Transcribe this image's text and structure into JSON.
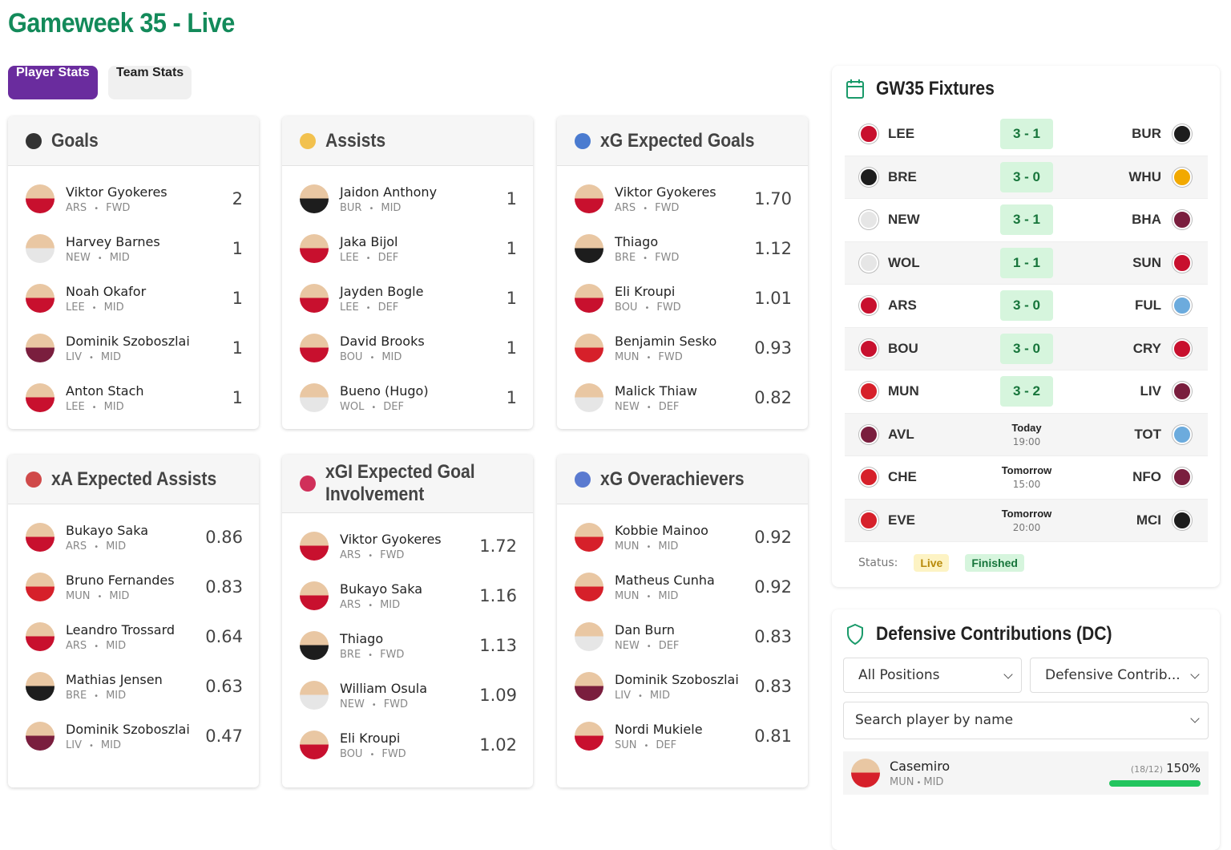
{
  "header": {
    "title": "Gameweek 35 - Live"
  },
  "tabs": [
    "Player Stats",
    "Team Stats"
  ],
  "cards": [
    {
      "title": "Goals",
      "players": [
        {
          "name": "Viktor Gyokeres",
          "team": "ARS",
          "pos": "FWD",
          "value": "2"
        },
        {
          "name": "Harvey Barnes",
          "team": "NEW",
          "pos": "MID",
          "value": "1"
        },
        {
          "name": "Noah Okafor",
          "team": "LEE",
          "pos": "MID",
          "value": "1"
        },
        {
          "name": "Dominik Szoboszlai",
          "team": "LIV",
          "pos": "MID",
          "value": "1"
        },
        {
          "name": "Anton Stach",
          "team": "LEE",
          "pos": "MID",
          "value": "1"
        }
      ]
    },
    {
      "title": "Assists",
      "players": [
        {
          "name": "Jaidon Anthony",
          "team": "BUR",
          "pos": "MID",
          "value": "1"
        },
        {
          "name": "Jaka Bijol",
          "team": "LEE",
          "pos": "DEF",
          "value": "1"
        },
        {
          "name": "Jayden Bogle",
          "team": "LEE",
          "pos": "DEF",
          "value": "1"
        },
        {
          "name": "David Brooks",
          "team": "BOU",
          "pos": "MID",
          "value": "1"
        },
        {
          "name": "Bueno (Hugo)",
          "team": "WOL",
          "pos": "DEF",
          "value": "1"
        }
      ]
    },
    {
      "title": "xG Expected Goals",
      "players": [
        {
          "name": "Viktor Gyokeres",
          "team": "ARS",
          "pos": "FWD",
          "value": "1.70"
        },
        {
          "name": "Thiago",
          "team": "BRE",
          "pos": "FWD",
          "value": "1.12"
        },
        {
          "name": "Eli Kroupi",
          "team": "BOU",
          "pos": "FWD",
          "value": "1.01"
        },
        {
          "name": "Benjamin Sesko",
          "team": "MUN",
          "pos": "FWD",
          "value": "0.93"
        },
        {
          "name": "Malick Thiaw",
          "team": "NEW",
          "pos": "DEF",
          "value": "0.82"
        }
      ]
    },
    {
      "title": "xA Expected Assists",
      "players": [
        {
          "name": "Bukayo Saka",
          "team": "ARS",
          "pos": "MID",
          "value": "0.86"
        },
        {
          "name": "Bruno Fernandes",
          "team": "MUN",
          "pos": "MID",
          "value": "0.83"
        },
        {
          "name": "Leandro Trossard",
          "team": "ARS",
          "pos": "MID",
          "value": "0.64"
        },
        {
          "name": "Mathias Jensen",
          "team": "BRE",
          "pos": "MID",
          "value": "0.63"
        },
        {
          "name": "Dominik Szoboszlai",
          "team": "LIV",
          "pos": "MID",
          "value": "0.47"
        }
      ]
    },
    {
      "title": "xGI Expected Goal Involvement",
      "players": [
        {
          "name": "Viktor Gyokeres",
          "team": "ARS",
          "pos": "FWD",
          "value": "1.72"
        },
        {
          "name": "Bukayo Saka",
          "team": "ARS",
          "pos": "MID",
          "value": "1.16"
        },
        {
          "name": "Thiago",
          "team": "BRE",
          "pos": "FWD",
          "value": "1.13"
        },
        {
          "name": "William Osula",
          "team": "NEW",
          "pos": "FWD",
          "value": "1.09"
        },
        {
          "name": "Eli Kroupi",
          "team": "BOU",
          "pos": "FWD",
          "value": "1.02"
        }
      ]
    },
    {
      "title": "xG Overachievers",
      "players": [
        {
          "name": "Kobbie Mainoo",
          "team": "MUN",
          "pos": "MID",
          "value": "0.92"
        },
        {
          "name": "Matheus Cunha",
          "team": "MUN",
          "pos": "MID",
          "value": "0.92"
        },
        {
          "name": "Dan Burn",
          "team": "NEW",
          "pos": "DEF",
          "value": "0.83"
        },
        {
          "name": "Dominik Szoboszlai",
          "team": "LIV",
          "pos": "MID",
          "value": "0.83"
        },
        {
          "name": "Nordi Mukiele",
          "team": "SUN",
          "pos": "DEF",
          "value": "0.81"
        }
      ]
    }
  ],
  "fixtures": {
    "title": "GW35 Fixtures",
    "matches": [
      {
        "home": "LEE",
        "score": "3 - 1",
        "away": "BUR"
      },
      {
        "home": "BRE",
        "score": "3 - 0",
        "away": "WHU"
      },
      {
        "home": "NEW",
        "score": "3 - 1",
        "away": "BHA"
      },
      {
        "home": "WOL",
        "score": "1 - 1",
        "away": "SUN"
      },
      {
        "home": "ARS",
        "score": "3 - 0",
        "away": "FUL"
      },
      {
        "home": "BOU",
        "score": "3 - 0",
        "away": "CRY"
      },
      {
        "home": "MUN",
        "score": "3 - 2",
        "away": "LIV"
      },
      {
        "home": "AVL",
        "day": "Today",
        "time": "19:00",
        "away": "TOT"
      },
      {
        "home": "CHE",
        "day": "Tomorrow",
        "time": "15:00",
        "away": "NFO"
      },
      {
        "home": "EVE",
        "day": "Tomorrow",
        "time": "20:00",
        "away": "MCI"
      }
    ],
    "status_label": "Status:",
    "legend": [
      "Live",
      "Finished"
    ]
  },
  "dc": {
    "title": "Defensive Contributions (DC)",
    "filters": [
      "All Positions",
      "Defensive Contrib..."
    ],
    "search_placeholder": "Search player by name",
    "players": [
      {
        "name": "Casemiro",
        "team": "MUN",
        "pos": "MID",
        "ratio": "(18/12)",
        "percent": "150%"
      }
    ]
  }
}
